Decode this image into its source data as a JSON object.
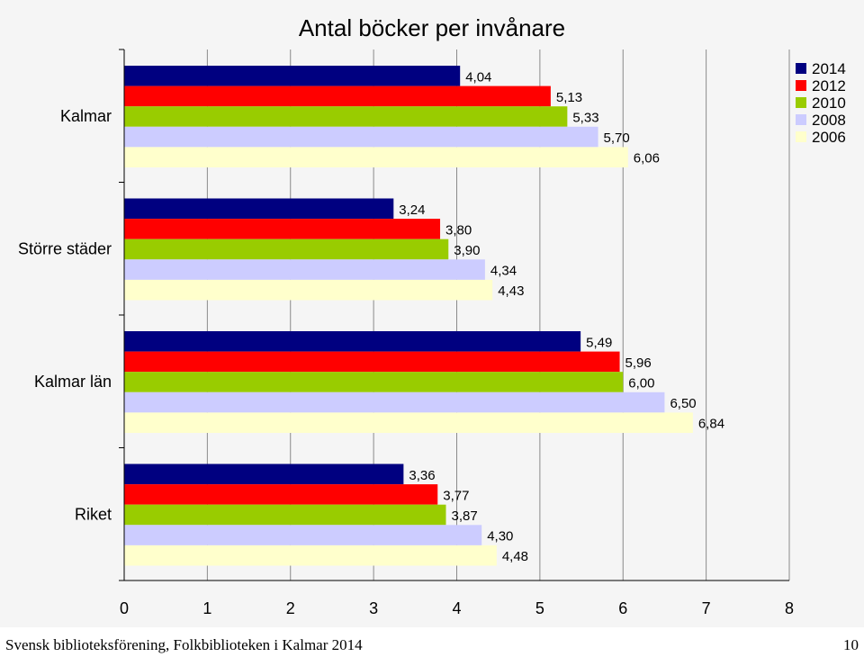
{
  "chart_data": {
    "type": "bar",
    "orientation": "horizontal",
    "title": "Antal böcker per invånare",
    "categories": [
      "Kalmar",
      "Större städer",
      "Kalmar län",
      "Riket"
    ],
    "series": [
      {
        "name": "2014",
        "color": "#000080",
        "values": [
          4.04,
          3.24,
          5.49,
          3.36
        ],
        "labels": [
          "4,04",
          "3,24",
          "5,49",
          "3,36"
        ]
      },
      {
        "name": "2012",
        "color": "#ff0000",
        "values": [
          5.13,
          3.8,
          5.96,
          3.77
        ],
        "labels": [
          "5,13",
          "3,80",
          "5,96",
          "3,77"
        ]
      },
      {
        "name": "2010",
        "color": "#99cc00",
        "values": [
          5.33,
          3.9,
          6.0,
          3.87
        ],
        "labels": [
          "5,33",
          "3,90",
          "6,00",
          "3,87"
        ]
      },
      {
        "name": "2008",
        "color": "#ccccff",
        "values": [
          5.7,
          4.34,
          6.5,
          4.3
        ],
        "labels": [
          "5,70",
          "4,34",
          "6,50",
          "4,30"
        ]
      },
      {
        "name": "2006",
        "color": "#ffffcc",
        "values": [
          6.06,
          4.43,
          6.84,
          4.48
        ],
        "labels": [
          "6,06",
          "4,43",
          "6,84",
          "4,48"
        ]
      }
    ],
    "xlim": [
      0,
      8
    ],
    "xticks": [
      "0",
      "1",
      "2",
      "3",
      "4",
      "5",
      "6",
      "7",
      "8"
    ],
    "grid": true,
    "legend": "top-right"
  },
  "footer": {
    "left": "Svensk biblioteksförening, Folkbiblioteken i Kalmar 2014",
    "page_number": "10"
  }
}
